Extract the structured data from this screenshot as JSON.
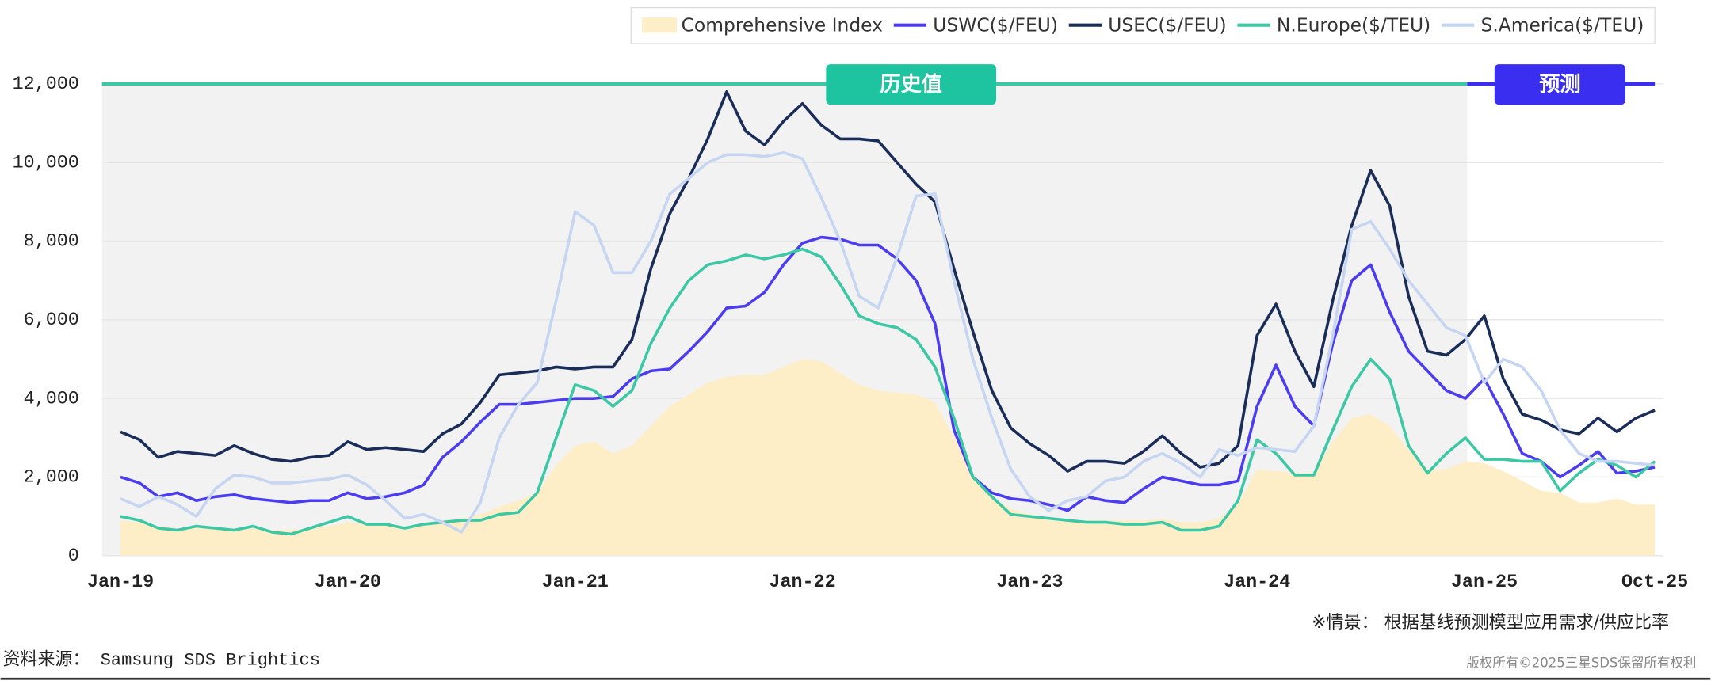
{
  "chart_data": {
    "type": "line",
    "categories": [
      "Jan-19",
      null,
      null,
      null,
      null,
      null,
      null,
      null,
      null,
      null,
      null,
      null,
      "Jan-20",
      null,
      null,
      null,
      null,
      null,
      null,
      null,
      null,
      null,
      null,
      null,
      "Jan-21",
      null,
      null,
      null,
      null,
      null,
      null,
      null,
      null,
      null,
      null,
      null,
      "Jan-22",
      null,
      null,
      null,
      null,
      null,
      null,
      null,
      null,
      null,
      null,
      null,
      "Jan-23",
      null,
      null,
      null,
      null,
      null,
      null,
      null,
      null,
      null,
      null,
      null,
      "Jan-24",
      null,
      null,
      null,
      null,
      null,
      null,
      null,
      null,
      null,
      null,
      null,
      "Jan-25",
      null,
      null,
      null,
      null,
      null,
      null,
      null,
      null,
      "Oct-25"
    ],
    "series": [
      {
        "name": "Comprehensive Index",
        "type": "area",
        "color": "#fdeec8",
        "values": [
          900,
          850,
          750,
          700,
          750,
          700,
          700,
          700,
          650,
          650,
          700,
          750,
          850,
          800,
          800,
          750,
          800,
          900,
          950,
          1050,
          1250,
          1400,
          1600,
          2300,
          2800,
          2900,
          2600,
          2800,
          3300,
          3800,
          4100,
          4400,
          4550,
          4600,
          4600,
          4800,
          5000,
          4950,
          4650,
          4350,
          4200,
          4150,
          4100,
          3900,
          3000,
          2100,
          1500,
          1200,
          1050,
          950,
          900,
          900,
          900,
          900,
          900,
          950,
          850,
          850,
          950,
          1300,
          2200,
          2150,
          2100,
          2100,
          2900,
          3500,
          3600,
          3300,
          2700,
          2200,
          2200,
          2400,
          2350,
          2150,
          1900,
          1650,
          1600,
          1350,
          1350,
          1450,
          1300,
          1300
        ]
      },
      {
        "name": "USWC($/FEU)",
        "type": "line",
        "color": "#4b3cf0",
        "values": [
          2000,
          1850,
          1500,
          1600,
          1400,
          1500,
          1550,
          1450,
          1400,
          1350,
          1400,
          1400,
          1600,
          1450,
          1500,
          1600,
          1800,
          2500,
          2900,
          3400,
          3850,
          3850,
          3900,
          3950,
          4000,
          4000,
          4050,
          4500,
          4700,
          4750,
          5200,
          5700,
          6300,
          6350,
          6700,
          7400,
          7950,
          8100,
          8050,
          7900,
          7900,
          7550,
          7000,
          5900,
          3200,
          2000,
          1600,
          1450,
          1400,
          1300,
          1150,
          1500,
          1400,
          1350,
          1700,
          2000,
          1900,
          1800,
          1800,
          1900,
          3800,
          4850,
          3800,
          3300,
          5400,
          7000,
          7400,
          6200,
          5200,
          4700,
          4200,
          4000,
          4500,
          3600,
          2600,
          2400,
          2000,
          2300,
          2650,
          2100,
          2150,
          2250
        ]
      },
      {
        "name": "USEC($/FEU)",
        "type": "line",
        "color": "#1a2d58",
        "values": [
          3150,
          2950,
          2500,
          2650,
          2600,
          2550,
          2800,
          2600,
          2450,
          2400,
          2500,
          2550,
          2900,
          2700,
          2750,
          2700,
          2650,
          3100,
          3350,
          3900,
          4600,
          4650,
          4700,
          4800,
          4750,
          4800,
          4800,
          5500,
          7300,
          8700,
          9600,
          10600,
          11800,
          10800,
          10450,
          11050,
          11500,
          10950,
          10600,
          10600,
          10550,
          10000,
          9450,
          9000,
          7300,
          5700,
          4200,
          3250,
          2850,
          2550,
          2150,
          2400,
          2400,
          2350,
          2650,
          3050,
          2600,
          2250,
          2350,
          2800,
          5600,
          6400,
          5200,
          4300,
          6500,
          8400,
          9800,
          8900,
          6600,
          5200,
          5100,
          5500,
          6100,
          4500,
          3600,
          3450,
          3200,
          3100,
          3500,
          3150,
          3500,
          3700
        ]
      },
      {
        "name": "N.Europe($/TEU)",
        "type": "line",
        "color": "#3cc8a5",
        "values": [
          1000,
          900,
          700,
          650,
          750,
          700,
          650,
          750,
          600,
          550,
          700,
          850,
          1000,
          800,
          800,
          700,
          800,
          850,
          900,
          900,
          1050,
          1100,
          1600,
          3000,
          4350,
          4200,
          3800,
          4200,
          5400,
          6300,
          7000,
          7400,
          7500,
          7650,
          7550,
          7650,
          7800,
          7600,
          6900,
          6100,
          5900,
          5800,
          5500,
          4800,
          3500,
          2000,
          1500,
          1050,
          1000,
          950,
          900,
          850,
          850,
          800,
          800,
          850,
          650,
          650,
          750,
          1400,
          2950,
          2600,
          2050,
          2050,
          3200,
          4300,
          5000,
          4500,
          2800,
          2100,
          2600,
          3000,
          2450,
          2450,
          2400,
          2400,
          1650,
          2100,
          2450,
          2300,
          2000,
          2400
        ]
      },
      {
        "name": "S.America($/TEU)",
        "type": "line",
        "color": "#c5d5f2",
        "values": [
          1450,
          1250,
          1500,
          1300,
          1000,
          1700,
          2050,
          2000,
          1850,
          1850,
          1900,
          1950,
          2050,
          1800,
          1400,
          950,
          1050,
          850,
          600,
          1350,
          3000,
          3850,
          4400,
          6500,
          8750,
          8400,
          7200,
          7200,
          8000,
          9200,
          9600,
          10000,
          10200,
          10200,
          10150,
          10250,
          10100,
          9100,
          8000,
          6600,
          6300,
          7600,
          9150,
          9200,
          7000,
          5000,
          3500,
          2200,
          1500,
          1150,
          1400,
          1500,
          1900,
          2000,
          2400,
          2600,
          2350,
          2000,
          2700,
          2550,
          2750,
          2700,
          2650,
          3300,
          5600,
          8300,
          8500,
          7800,
          7000,
          6400,
          5800,
          5600,
          4400,
          5000,
          4800,
          4200,
          3200,
          2600,
          2400,
          2400,
          2350,
          2300
        ]
      }
    ],
    "ylim": [
      0,
      12000
    ],
    "yticks": [
      0,
      {
        "value": 2000,
        "label": "2,000"
      },
      {
        "value": 4000,
        "label": "4,000"
      },
      {
        "value": 6000,
        "label": "6,000"
      },
      {
        "value": 8000,
        "label": "8,000"
      },
      {
        "value": 10000,
        "label": "10,000"
      },
      {
        "value": 12000,
        "label": "12,000"
      }
    ],
    "grid": true,
    "legend": "top-right",
    "annotations": [
      "历史值",
      "预测"
    ],
    "note": "※情景： 根据基线预测模型应用需求/供应比率"
  },
  "source": "资料来源： Samsung SDS Brightics",
  "copyright": "版权所有©2025三星SDS保留所有权利"
}
